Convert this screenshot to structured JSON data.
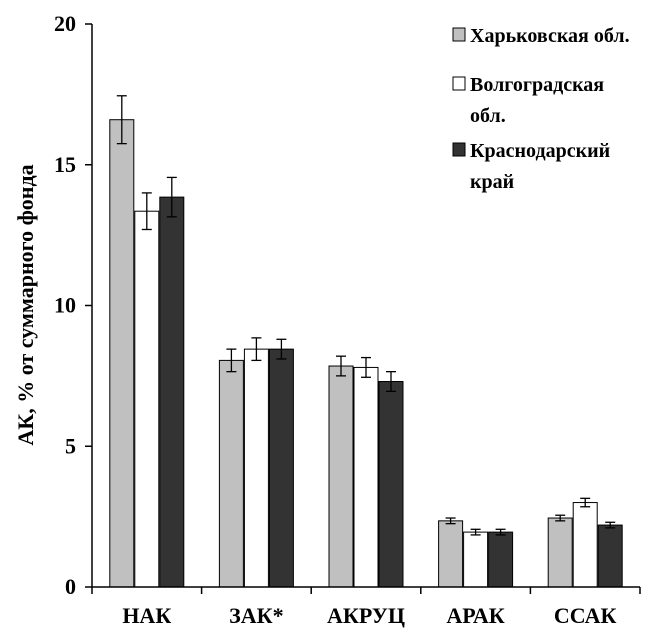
{
  "chart_data": {
    "type": "bar",
    "ylabel": "АК, % от суммарного фонда",
    "ylim": [
      0,
      20
    ],
    "yticks": [
      0,
      5,
      10,
      15,
      20
    ],
    "categories": [
      "НАК",
      "ЗАК*",
      "АКРУЦ",
      "АРАК",
      "ССАК"
    ],
    "grid": false,
    "legend_position": "top-right",
    "series": [
      {
        "name": "Харьковская обл.",
        "legend_lines": [
          "Харьковская обл."
        ],
        "color": "#c0c0c0",
        "values": [
          16.6,
          8.05,
          7.85,
          2.35,
          2.45
        ],
        "errors": [
          0.85,
          0.4,
          0.35,
          0.1,
          0.1
        ]
      },
      {
        "name": "Волгоградская обл.",
        "legend_lines": [
          "Волгоградская",
          "обл."
        ],
        "color": "#ffffff",
        "values": [
          13.35,
          8.45,
          7.8,
          1.95,
          3.0
        ],
        "errors": [
          0.65,
          0.4,
          0.35,
          0.1,
          0.15
        ]
      },
      {
        "name": "Краснодарский край",
        "legend_lines": [
          "Краснодарский",
          "край"
        ],
        "color": "#333333",
        "values": [
          13.85,
          8.45,
          7.3,
          1.95,
          2.2
        ],
        "errors": [
          0.7,
          0.35,
          0.35,
          0.1,
          0.1
        ]
      }
    ]
  }
}
